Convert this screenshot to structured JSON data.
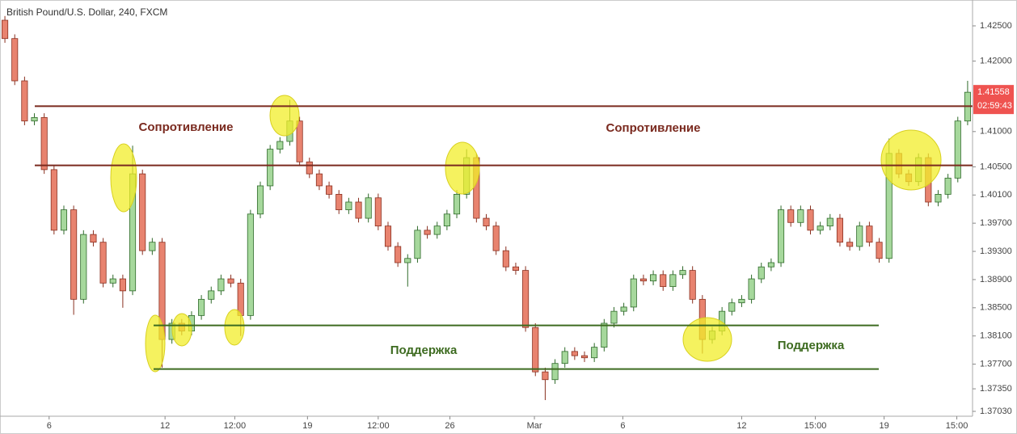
{
  "chart_data": {
    "type": "candlestick",
    "title": "British Pound/U.S. Dollar, 240, FXCM",
    "open": [
      1.4258,
      1.4232,
      1.4172,
      1.4115,
      1.412,
      1.4046,
      1.396,
      1.3989,
      1.3862,
      1.3954,
      1.3943,
      1.3885,
      1.3891,
      1.3874,
      1.404,
      1.3931,
      1.3943,
      1.3805,
      1.3828,
      1.3817,
      1.3839,
      1.3862,
      1.3874,
      1.3891,
      1.3885,
      1.3839,
      1.3983,
      1.4023,
      1.4075,
      1.4086,
      1.4115,
      1.4057,
      1.404,
      1.4023,
      1.4011,
      1.3989,
      1.4,
      1.3977,
      1.4006,
      1.3966,
      1.3937,
      1.3914,
      1.392,
      1.396,
      1.3954,
      1.3966,
      1.3983,
      1.4011,
      1.4063,
      1.3977,
      1.3966,
      1.3931,
      1.3908,
      1.3903,
      1.3822,
      1.3759,
      1.3748,
      1.3771,
      1.3788,
      1.3782,
      1.3779,
      1.3794,
      1.3828,
      1.3845,
      1.3851,
      1.3891,
      1.3888,
      1.3897,
      1.388,
      1.3897,
      1.3903,
      1.3862,
      1.3805,
      1.3817,
      1.3845,
      1.3857,
      1.3862,
      1.3891,
      1.3908,
      1.3914,
      1.3989,
      1.3971,
      1.3989,
      1.396,
      1.3966,
      1.3977,
      1.3943,
      1.3937,
      1.3966,
      1.3943,
      1.392,
      1.4069,
      1.404,
      1.4029,
      1.4063,
      1.4,
      1.4011,
      1.4034,
      1.4115
    ],
    "high": [
      1.4264,
      1.4238,
      1.4178,
      1.4126,
      1.4126,
      1.4052,
      1.3995,
      1.3995,
      1.396,
      1.396,
      1.3949,
      1.3897,
      1.3897,
      1.408,
      1.4046,
      1.3949,
      1.3949,
      1.3834,
      1.3834,
      1.3845,
      1.3868,
      1.388,
      1.3897,
      1.3897,
      1.3891,
      1.3989,
      1.4029,
      1.4081,
      1.4092,
      1.4145,
      1.4121,
      1.4063,
      1.4046,
      1.4029,
      1.4017,
      1.4006,
      1.4006,
      1.4012,
      1.4012,
      1.3972,
      1.3943,
      1.3926,
      1.3966,
      1.3966,
      1.3972,
      1.3989,
      1.4017,
      1.4075,
      1.4069,
      1.3983,
      1.3972,
      1.3937,
      1.3914,
      1.3909,
      1.3828,
      1.3765,
      1.3777,
      1.3794,
      1.3794,
      1.3788,
      1.38,
      1.3834,
      1.3851,
      1.3857,
      1.3897,
      1.3897,
      1.3903,
      1.3903,
      1.3903,
      1.3909,
      1.3909,
      1.3868,
      1.3823,
      1.3851,
      1.3863,
      1.3868,
      1.3897,
      1.3914,
      1.392,
      1.3995,
      1.3995,
      1.3995,
      1.3995,
      1.3972,
      1.3983,
      1.3983,
      1.3949,
      1.3972,
      1.3972,
      1.3949,
      1.409,
      1.4075,
      1.4046,
      1.4069,
      1.4069,
      1.4017,
      1.404,
      1.4121,
      1.4172
    ],
    "low": [
      1.4226,
      1.4166,
      1.4109,
      1.4109,
      1.404,
      1.3954,
      1.3954,
      1.384,
      1.3856,
      1.3937,
      1.3879,
      1.3879,
      1.385,
      1.3868,
      1.3925,
      1.3925,
      1.3765,
      1.3799,
      1.3811,
      1.3811,
      1.3833,
      1.3856,
      1.3868,
      1.3879,
      1.381,
      1.3833,
      1.3977,
      1.4017,
      1.4069,
      1.408,
      1.4051,
      1.4034,
      1.4017,
      1.4005,
      1.3983,
      1.3983,
      1.3971,
      1.3971,
      1.396,
      1.3931,
      1.3908,
      1.388,
      1.3914,
      1.3948,
      1.3948,
      1.396,
      1.3977,
      1.4005,
      1.3971,
      1.396,
      1.3925,
      1.3902,
      1.3897,
      1.3816,
      1.3753,
      1.3719,
      1.3742,
      1.3765,
      1.3776,
      1.3773,
      1.3773,
      1.3788,
      1.3822,
      1.3839,
      1.3845,
      1.3882,
      1.3882,
      1.3874,
      1.3874,
      1.3891,
      1.3856,
      1.3785,
      1.3799,
      1.3811,
      1.3839,
      1.3851,
      1.3856,
      1.3885,
      1.3902,
      1.3908,
      1.3965,
      1.3965,
      1.3954,
      1.3954,
      1.396,
      1.3937,
      1.3931,
      1.3931,
      1.3937,
      1.3914,
      1.3914,
      1.4034,
      1.4023,
      1.4023,
      1.3994,
      1.3994,
      1.4005,
      1.4028,
      1.4109
    ],
    "close": [
      1.4232,
      1.4172,
      1.4115,
      1.412,
      1.4046,
      1.396,
      1.3989,
      1.3862,
      1.3954,
      1.3943,
      1.3885,
      1.3891,
      1.3874,
      1.404,
      1.3931,
      1.3943,
      1.3805,
      1.3828,
      1.3817,
      1.3839,
      1.3862,
      1.3874,
      1.3891,
      1.3885,
      1.3839,
      1.3983,
      1.4023,
      1.4075,
      1.4086,
      1.4115,
      1.4057,
      1.404,
      1.4023,
      1.4011,
      1.3989,
      1.4,
      1.3977,
      1.4006,
      1.3966,
      1.3937,
      1.3914,
      1.392,
      1.396,
      1.3954,
      1.3966,
      1.3983,
      1.4011,
      1.4063,
      1.3977,
      1.3966,
      1.3931,
      1.3908,
      1.3903,
      1.3822,
      1.3759,
      1.3748,
      1.3771,
      1.3788,
      1.3782,
      1.3779,
      1.3794,
      1.3828,
      1.3845,
      1.3851,
      1.3891,
      1.3888,
      1.3897,
      1.388,
      1.3897,
      1.3903,
      1.3862,
      1.3805,
      1.3817,
      1.3845,
      1.3857,
      1.3862,
      1.3891,
      1.3908,
      1.3914,
      1.3989,
      1.3971,
      1.3989,
      1.396,
      1.3966,
      1.3977,
      1.3943,
      1.3937,
      1.3966,
      1.3943,
      1.392,
      1.4069,
      1.404,
      1.4029,
      1.4063,
      1.4,
      1.4011,
      1.4034,
      1.4115,
      1.41558
    ],
    "up_color": "#a6d89c",
    "down_color": "#e8836f",
    "up_edge": "#2f6a2a",
    "down_edge": "#8a3020",
    "ylim": [
      1.36961,
      1.42867
    ],
    "yticks": [
      {
        "value": 1.425,
        "label": "1.42500"
      },
      {
        "value": 1.42,
        "label": "1.42000"
      },
      {
        "value": 1.41,
        "label": "1.41000"
      },
      {
        "value": 1.405,
        "label": "1.40500"
      },
      {
        "value": 1.401,
        "label": "1.40100"
      },
      {
        "value": 1.397,
        "label": "1.39700"
      },
      {
        "value": 1.393,
        "label": "1.39300"
      },
      {
        "value": 1.389,
        "label": "1.38900"
      },
      {
        "value": 1.385,
        "label": "1.38500"
      },
      {
        "value": 1.381,
        "label": "1.38100"
      },
      {
        "value": 1.377,
        "label": "1.37700"
      },
      {
        "value": 1.3735,
        "label": "1.37350"
      },
      {
        "value": 1.3703,
        "label": "1.37030"
      }
    ],
    "xlim": [
      -0.5,
      98.5
    ],
    "xticks": [
      {
        "value": 4.5,
        "label": "6"
      },
      {
        "value": 16.3,
        "label": "12"
      },
      {
        "value": 23.4,
        "label": "12:00"
      },
      {
        "value": 30.8,
        "label": "19"
      },
      {
        "value": 38,
        "label": "12:00"
      },
      {
        "value": 45.3,
        "label": "26"
      },
      {
        "value": 53.9,
        "label": "Mar"
      },
      {
        "value": 62.9,
        "label": "6"
      },
      {
        "value": 75,
        "label": "12"
      },
      {
        "value": 82.5,
        "label": "15:00"
      },
      {
        "value": 89.5,
        "label": "19"
      },
      {
        "value": 96.9,
        "label": "15:00"
      }
    ],
    "resistance": {
      "label": "Сопротивление",
      "levels": [
        1.4136,
        1.4052
      ],
      "color": "#7a2a1f"
    },
    "support": {
      "label": "Поддержка",
      "levels": [
        1.3825,
        1.3763
      ],
      "color": "#3d6b20"
    },
    "price_tag": {
      "value": 1.41558,
      "label": "1.41558",
      "countdown": "02:59:43",
      "color": "#ef5350"
    }
  }
}
